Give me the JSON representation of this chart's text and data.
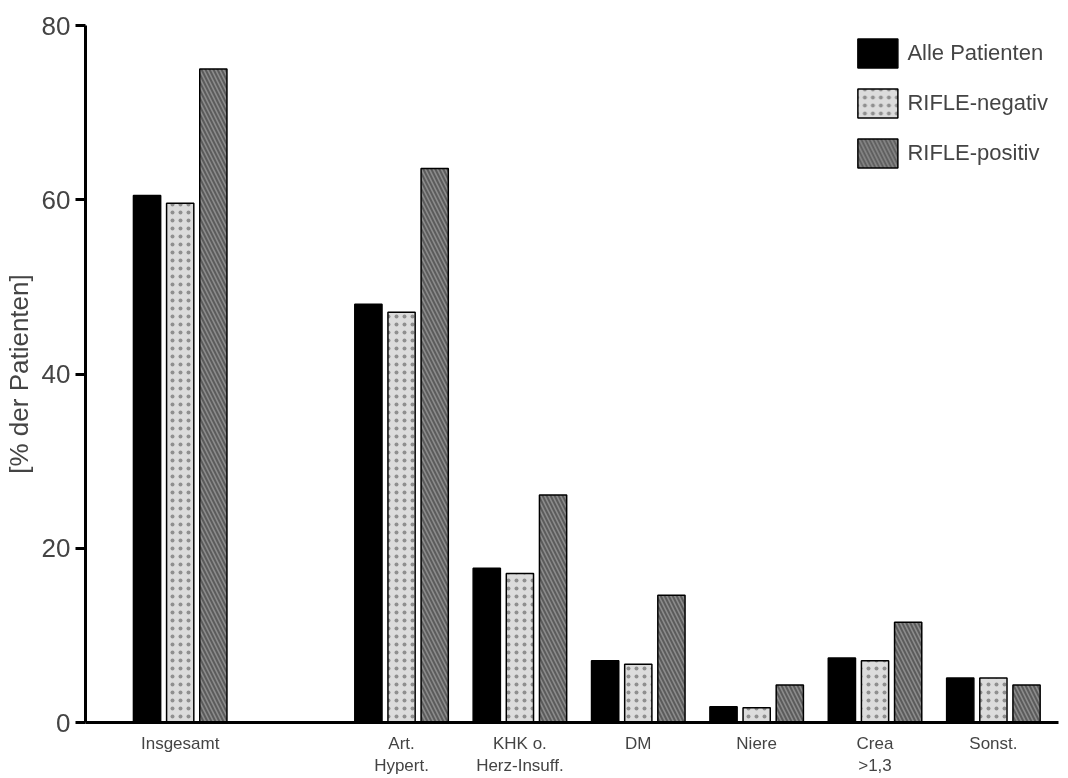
{
  "chart_data": {
    "type": "bar",
    "ylabel": "[% der Patienten]",
    "categories": [
      "Insgesamt",
      "Art.\nHypert.",
      "KHK o.\nHerz-Insuff.",
      "DM",
      "Niere",
      "Crea\n>1,3",
      "Sonst."
    ],
    "series": [
      {
        "name": "Alle Patienten",
        "color": "#000000",
        "values": [
          60.5,
          48.0,
          17.7,
          7.1,
          1.8,
          7.4,
          5.1
        ]
      },
      {
        "name": "RIFLE-negativ",
        "color": "#dcdcdc",
        "values": [
          59.6,
          47.1,
          17.1,
          6.7,
          1.7,
          7.1,
          5.1
        ]
      },
      {
        "name": "RIFLE-positiv",
        "color": "#8c8c8c",
        "values": [
          75.0,
          63.6,
          26.1,
          14.6,
          4.3,
          11.5,
          4.3
        ]
      }
    ],
    "ylim": [
      0,
      80
    ],
    "yticks": [
      0,
      20,
      40,
      60,
      80
    ],
    "grid": false,
    "legend": "top right"
  }
}
